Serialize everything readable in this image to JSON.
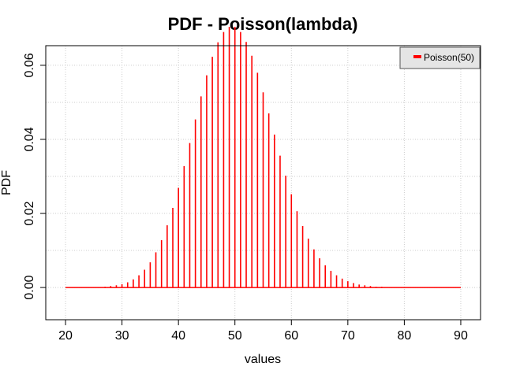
{
  "chart_data": {
    "type": "bar",
    "title": "PDF - Poisson(lambda)",
    "xlabel": "values",
    "ylabel": "PDF",
    "xlim": [
      16.5,
      93.5
    ],
    "ylim": [
      -0.0087,
      0.0653
    ],
    "x_ticks": [
      20,
      30,
      40,
      50,
      60,
      70,
      80,
      90
    ],
    "x_tick_labels": [
      "20",
      "30",
      "40",
      "50",
      "60",
      "70",
      "80",
      "90"
    ],
    "y_ticks": [
      0.0,
      0.02,
      0.04,
      0.06
    ],
    "y_tick_labels": [
      "0.00",
      "0.02",
      "0.04",
      "0.06"
    ],
    "grid": true,
    "legend": {
      "position": "top-right",
      "entries": [
        "Poisson(50)"
      ]
    },
    "series": [
      {
        "name": "Poisson(50)",
        "color": "#ff0000",
        "x": [
          20,
          21,
          22,
          23,
          24,
          25,
          26,
          27,
          28,
          29,
          30,
          31,
          32,
          33,
          34,
          35,
          36,
          37,
          38,
          39,
          40,
          41,
          42,
          43,
          44,
          45,
          46,
          47,
          48,
          49,
          50,
          51,
          52,
          53,
          54,
          55,
          56,
          57,
          58,
          59,
          60,
          61,
          62,
          63,
          64,
          65,
          66,
          67,
          68,
          69,
          70,
          71,
          72,
          73,
          74,
          75,
          76,
          77,
          78,
          79,
          80,
          81,
          82,
          83,
          84,
          85,
          86,
          87,
          88,
          89,
          90
        ],
        "values": [
          0.0,
          0.0,
          0.0,
          0.0,
          0.0,
          0.0001,
          0.0001,
          0.0002,
          0.0004,
          0.0006,
          0.0009,
          0.0014,
          0.0022,
          0.0033,
          0.0048,
          0.0068,
          0.0095,
          0.0128,
          0.0168,
          0.0215,
          0.0269,
          0.0328,
          0.039,
          0.0454,
          0.0516,
          0.0573,
          0.0623,
          0.0662,
          0.069,
          0.0704,
          0.0704,
          0.069,
          0.0663,
          0.0626,
          0.058,
          0.0527,
          0.047,
          0.0413,
          0.0356,
          0.0302,
          0.0252,
          0.0206,
          0.0166,
          0.0132,
          0.0103,
          0.0079,
          0.006,
          0.0045,
          0.0033,
          0.0024,
          0.0017,
          0.0012,
          0.0008,
          0.0006,
          0.0004,
          0.0002,
          0.0002,
          0.0001,
          0.0001,
          0.0,
          0.0,
          0.0,
          0.0,
          0.0,
          0.0,
          0.0,
          0.0,
          0.0,
          0.0,
          0.0,
          0.0
        ]
      }
    ]
  }
}
